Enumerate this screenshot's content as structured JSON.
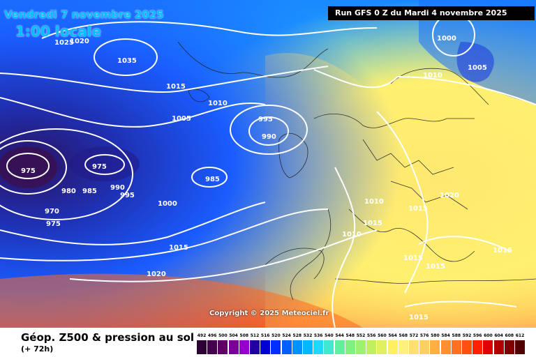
{
  "header": {
    "date": "Vendredi 7 novembre 2025",
    "time": "1:00 locale",
    "run": "Run GFS 0 Z du Mardi 4 novembre 2025"
  },
  "map": {
    "copyright": "Copyright © 2025 Meteociel.fr",
    "isobars": [
      "1025",
      "1020",
      "1035",
      "1015",
      "1010",
      "1005",
      "995",
      "990",
      "975",
      "975",
      "985",
      "990",
      "995",
      "980",
      "985",
      "1000",
      "970",
      "975",
      "1015",
      "1020",
      "1000",
      "1010",
      "1005",
      "1020",
      "1010",
      "1015",
      "1015",
      "1010",
      "1015",
      "1015",
      "1015",
      "1015"
    ],
    "colors": {
      "deep_low": "#1a1a8c",
      "low": "#2244ff",
      "cyan": "#20c8ff",
      "green": "#70e070",
      "yellow": "#fff070",
      "orange": "#ffa040",
      "red": "#ff4020"
    }
  },
  "footer": {
    "product": "Géop. Z500 & pression au sol",
    "lead_time": "(+ 72h)"
  },
  "scale": {
    "labels": [
      "492",
      "496",
      "500",
      "504",
      "508",
      "512",
      "516",
      "520",
      "524",
      "528",
      "532",
      "536",
      "540",
      "544",
      "548",
      "552",
      "556",
      "560",
      "564",
      "568",
      "572",
      "576",
      "580",
      "584",
      "588",
      "592",
      "596",
      "600",
      "604",
      "608",
      "612"
    ],
    "colors": [
      "#2b0033",
      "#44004d",
      "#5c0066",
      "#7a0099",
      "#9400cc",
      "#2000a0",
      "#0000d0",
      "#0030ff",
      "#0060ff",
      "#0090ff",
      "#00b8ff",
      "#20d8ff",
      "#40e8d0",
      "#60f0a0",
      "#80f080",
      "#a0f070",
      "#c0f060",
      "#e0f060",
      "#fff060",
      "#fff080",
      "#ffe070",
      "#ffd060",
      "#ffb040",
      "#ff9030",
      "#ff7020",
      "#ff5010",
      "#ff2000",
      "#e00000",
      "#b00000",
      "#800000",
      "#500000"
    ]
  }
}
